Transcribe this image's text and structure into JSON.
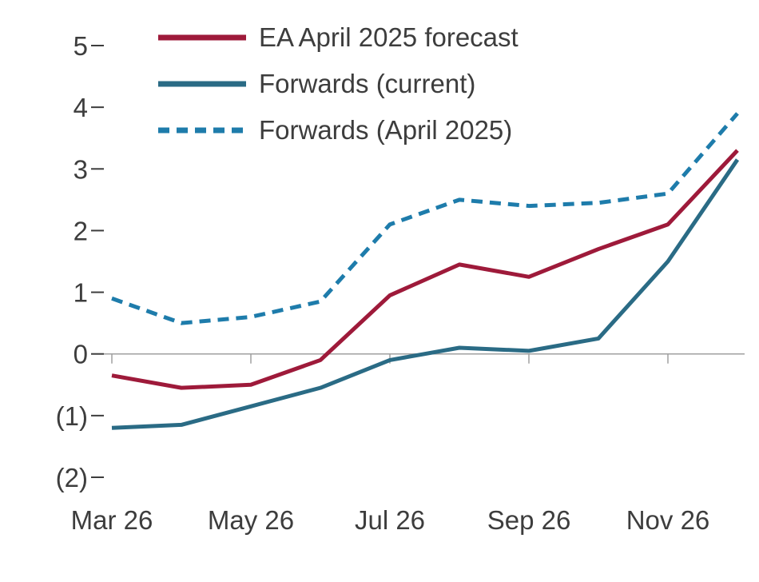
{
  "chart_data": {
    "type": "line",
    "title": "",
    "xlabel": "",
    "ylabel": "",
    "ylim": [
      -2,
      5
    ],
    "grid": "zero-line-only",
    "legend_position": "top-left",
    "y_ticks": [
      5,
      4,
      3,
      2,
      1,
      0,
      -1,
      -2
    ],
    "y_tick_labels": [
      "5",
      "4",
      "3",
      "2",
      "1",
      "0",
      "(1)",
      "(2)"
    ],
    "x": [
      "Mar 26",
      "Apr 26",
      "May 26",
      "Jun 26",
      "Jul 26",
      "Aug 26",
      "Sep 26",
      "Oct 26",
      "Nov 26",
      "Dec 26"
    ],
    "x_axis_tick_labels": [
      "Mar 26",
      "May 26",
      "Jul 26",
      "Sep 26",
      "Nov 26"
    ],
    "x_axis_tick_indices": [
      0,
      2,
      4,
      6,
      8
    ],
    "series": [
      {
        "name": "EA April 2025 forecast",
        "color": "#9e1a3a",
        "line_style": "solid",
        "values": [
          -0.35,
          -0.55,
          -0.5,
          -0.1,
          0.95,
          1.45,
          1.25,
          1.7,
          2.1,
          3.3
        ]
      },
      {
        "name": "Forwards (current)",
        "color": "#2a6b85",
        "line_style": "solid",
        "values": [
          -1.2,
          -1.15,
          -0.85,
          -0.55,
          -0.1,
          0.1,
          0.05,
          0.25,
          1.5,
          3.15
        ]
      },
      {
        "name": "Forwards (April 2025)",
        "color": "#1e7cab",
        "line_style": "dashed",
        "values": [
          0.9,
          0.5,
          0.6,
          0.85,
          2.1,
          2.5,
          2.4,
          2.45,
          2.6,
          3.9
        ]
      }
    ],
    "colors": {
      "text": "#3d3d3d",
      "zero_line": "#a0a0a0",
      "tick": "#3d3d3d"
    }
  }
}
